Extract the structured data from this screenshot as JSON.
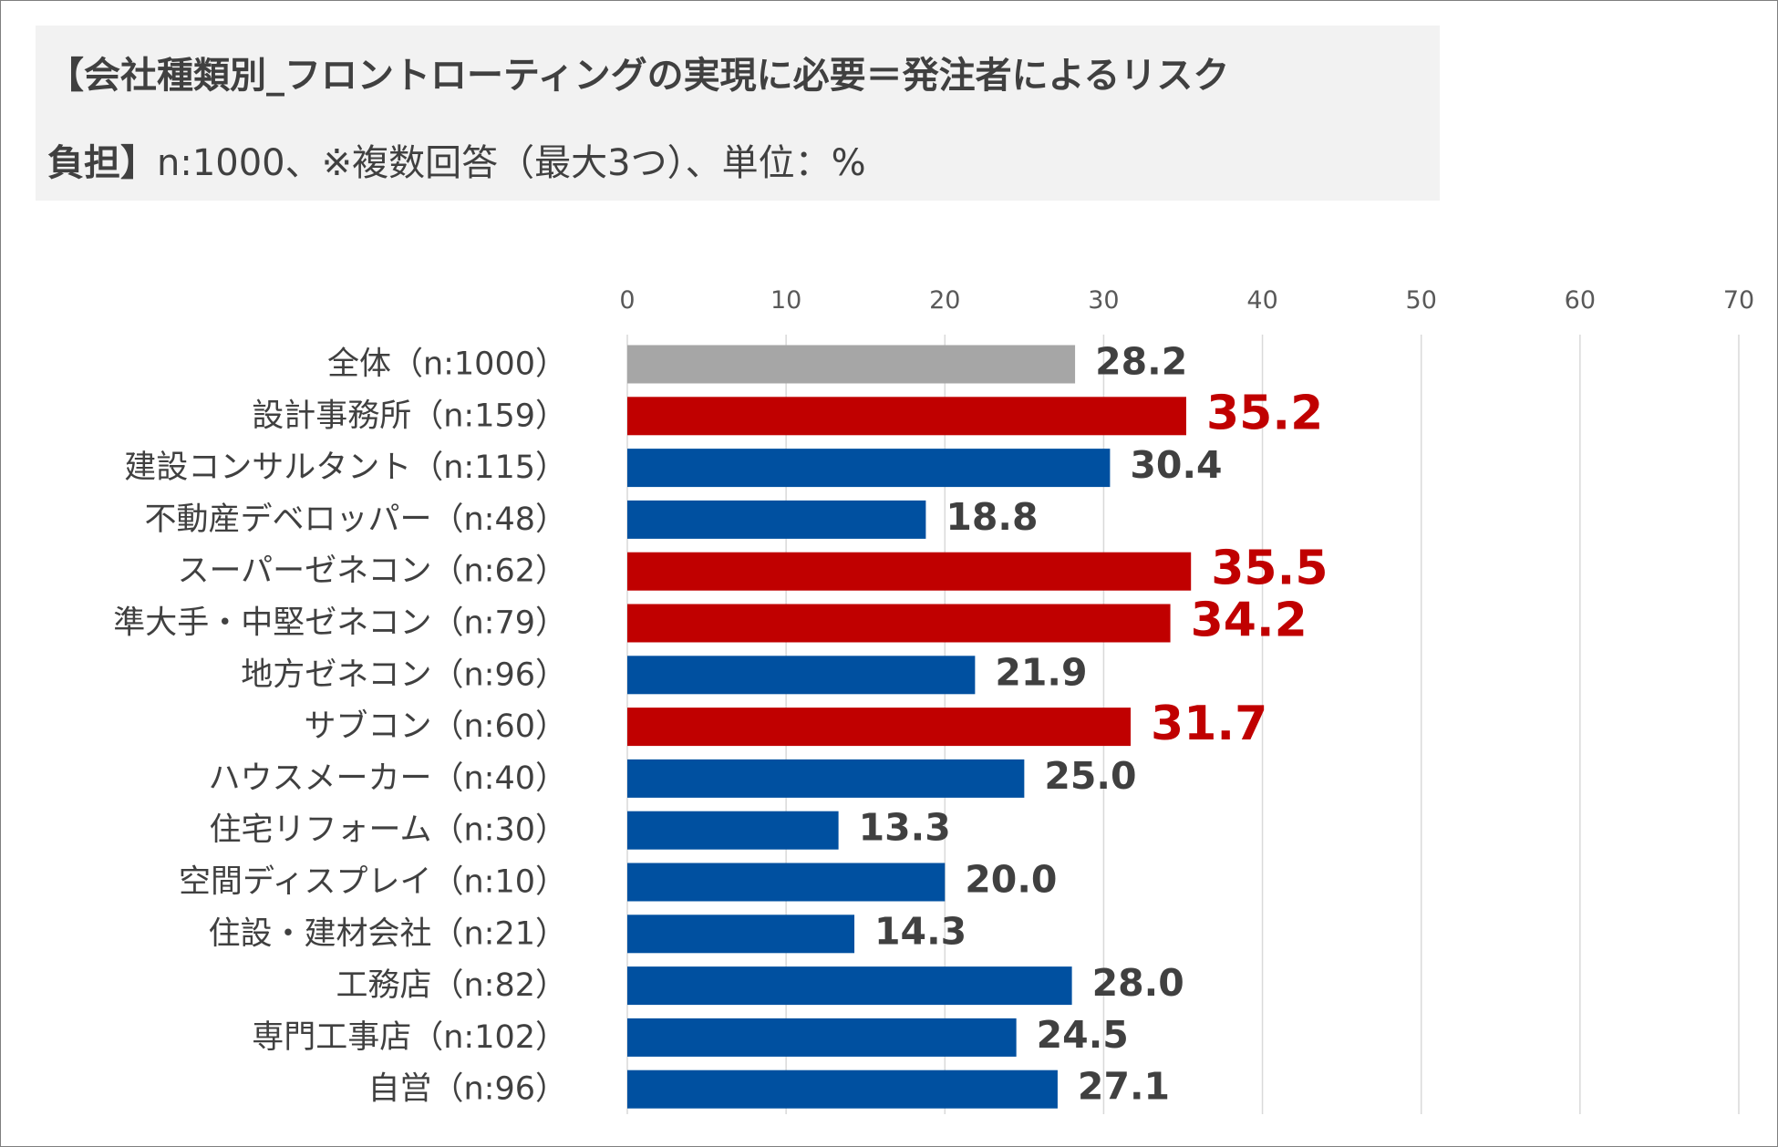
{
  "title": {
    "line1": "【会社種類別_フロントローティングの実現に必要＝発注者によるリスク",
    "line2_bold": "負担】",
    "line2_rest": "n:1000、※複数回答（最大3つ）、単位：%"
  },
  "colors": {
    "overall": "#a6a6a6",
    "highlight": "#c00000",
    "normal": "#0050a0",
    "highlight_text": "#c00000",
    "normal_text": "#404040",
    "grid": "#d9d9d9"
  },
  "chart_data": {
    "type": "bar",
    "orientation": "horizontal",
    "xlim": [
      0,
      70
    ],
    "ticks": [
      0,
      10,
      20,
      30,
      40,
      50,
      60,
      70
    ],
    "grid": true,
    "legend": "none",
    "categories": [
      "全体（n:1000）",
      "設計事務所（n:159）",
      "建設コンサルタント（n:115）",
      "不動産デベロッパー（n:48）",
      "スーパーゼネコン（n:62）",
      "準大手・中堅ゼネコン（n:79）",
      "地方ゼネコン（n:96）",
      "サブコン（n:60）",
      "ハウスメーカー（n:40）",
      "住宅リフォーム（n:30）",
      "空間ディスプレイ（n:10）",
      "住設・建材会社（n:21）",
      "工務店（n:82）",
      "専門工事店（n:102）",
      "自営（n:96）"
    ],
    "values": [
      28.2,
      35.2,
      30.4,
      18.8,
      35.5,
      34.2,
      21.9,
      31.7,
      25.0,
      13.3,
      20.0,
      14.3,
      28.0,
      24.5,
      27.1
    ],
    "value_labels": [
      "28.2",
      "35.2",
      "30.4",
      "18.8",
      "35.5",
      "34.2",
      "21.9",
      "31.7",
      "25.0",
      "13.3",
      "20.0",
      "14.3",
      "28.0",
      "24.5",
      "27.1"
    ],
    "bar_types": [
      "overall",
      "highlight",
      "normal",
      "normal",
      "highlight",
      "highlight",
      "normal",
      "highlight",
      "normal",
      "normal",
      "normal",
      "normal",
      "normal",
      "normal",
      "normal"
    ]
  }
}
